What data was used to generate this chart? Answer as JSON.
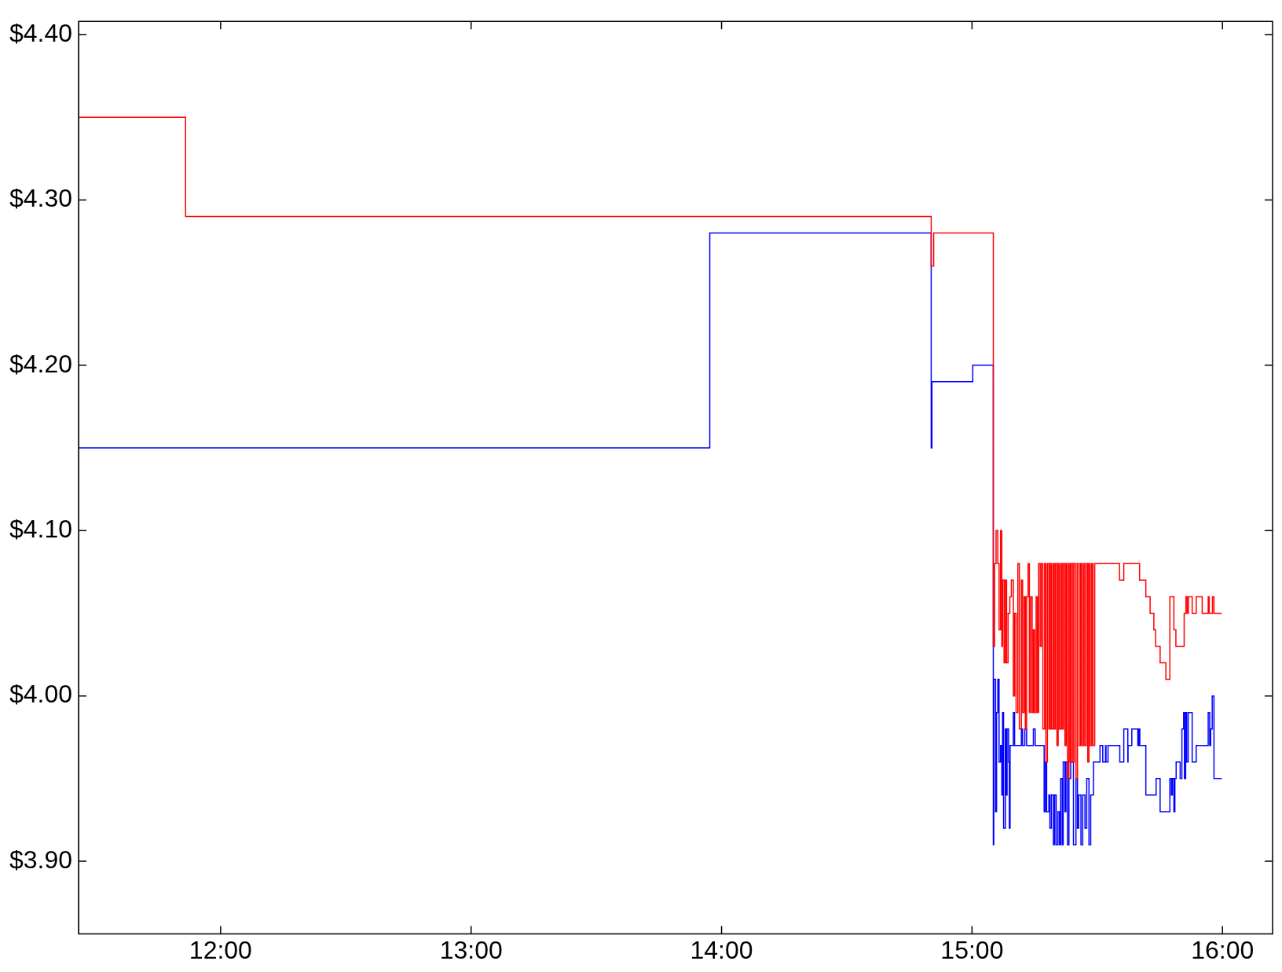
{
  "chart_data": {
    "type": "step",
    "xlim": [
      11.433,
      16.2
    ],
    "ylim": [
      3.856,
      4.408
    ],
    "xticks": [
      {
        "value": 12,
        "label": "12:00"
      },
      {
        "value": 13,
        "label": "13:00"
      },
      {
        "value": 14,
        "label": "14:00"
      },
      {
        "value": 15,
        "label": "15:00"
      },
      {
        "value": 16,
        "label": "16:00"
      }
    ],
    "yticks": [
      {
        "value": 3.9,
        "label": "$3.90"
      },
      {
        "value": 4.0,
        "label": "$4.00"
      },
      {
        "value": 4.1,
        "label": "$4.10"
      },
      {
        "value": 4.2,
        "label": "$4.20"
      },
      {
        "value": 4.3,
        "label": "$4.30"
      },
      {
        "value": 4.4,
        "label": "$4.40"
      }
    ],
    "grid": false,
    "legend": false,
    "marker": "none",
    "line_style": "solid",
    "series": [
      {
        "color": "#ff0000",
        "x": [
          11.433,
          11.86,
          14.837,
          14.847,
          15.085,
          15.09,
          15.096,
          15.103,
          15.108,
          15.114,
          15.119,
          15.122,
          15.128,
          15.133,
          15.138,
          15.144,
          15.151,
          15.157,
          15.165,
          15.17,
          15.176,
          15.183,
          15.189,
          15.197,
          15.202,
          15.208,
          15.213,
          15.218,
          15.224,
          15.229,
          15.234,
          15.24,
          15.245,
          15.25,
          15.256,
          15.261,
          15.266,
          15.272,
          15.277,
          15.283,
          15.29,
          15.295,
          15.301,
          15.307,
          15.312,
          15.317,
          15.323,
          15.328,
          15.333,
          15.339,
          15.344,
          15.349,
          15.355,
          15.36,
          15.365,
          15.371,
          15.376,
          15.381,
          15.387,
          15.392,
          15.397,
          15.403,
          15.408,
          15.415,
          15.421,
          15.428,
          15.434,
          15.439,
          15.445,
          15.45,
          15.456,
          15.462,
          15.467,
          15.472,
          15.478,
          15.483,
          15.49,
          15.589,
          15.606,
          15.669,
          15.694,
          15.711,
          15.726,
          15.733,
          15.751,
          15.774,
          15.79,
          15.806,
          15.814,
          15.847,
          15.854,
          15.859,
          15.864,
          15.879,
          15.895,
          15.919,
          15.943,
          15.947,
          15.96,
          15.966,
          15.997
        ],
        "values": [
          4.35,
          4.29,
          4.26,
          4.28,
          4.03,
          4.08,
          4.1,
          4.08,
          4.04,
          4.1,
          4.03,
          4.07,
          4.02,
          4.07,
          4.02,
          4.05,
          4.06,
          4.07,
          4.0,
          4.05,
          3.99,
          4.08,
          3.98,
          4.07,
          3.99,
          4.06,
          3.98,
          4.06,
          4.08,
          3.99,
          4.06,
          3.99,
          4.04,
          3.99,
          4.06,
          3.99,
          4.08,
          4.03,
          4.08,
          3.98,
          4.08,
          3.96,
          4.08,
          3.98,
          4.08,
          3.98,
          4.08,
          3.98,
          4.08,
          3.97,
          4.08,
          3.98,
          4.08,
          3.98,
          4.08,
          3.97,
          4.08,
          3.95,
          4.08,
          3.96,
          4.08,
          3.96,
          4.08,
          3.95,
          4.08,
          3.97,
          4.08,
          3.97,
          4.08,
          3.97,
          4.08,
          3.96,
          4.08,
          3.97,
          4.08,
          3.97,
          4.08,
          4.07,
          4.08,
          4.07,
          4.06,
          4.05,
          4.04,
          4.03,
          4.02,
          4.01,
          4.06,
          4.04,
          4.03,
          4.05,
          4.06,
          4.05,
          4.06,
          4.05,
          4.06,
          4.05,
          4.06,
          4.05,
          4.06,
          4.05,
          4.05
        ]
      },
      {
        "color": "#0000ff",
        "x": [
          11.433,
          13.953,
          14.837,
          14.84,
          15.003,
          15.085,
          15.087,
          15.094,
          15.098,
          15.103,
          15.108,
          15.114,
          15.119,
          15.122,
          15.126,
          15.133,
          15.136,
          15.14,
          15.146,
          15.149,
          15.152,
          15.165,
          15.17,
          15.197,
          15.202,
          15.211,
          15.218,
          15.245,
          15.252,
          15.288,
          15.293,
          15.298,
          15.307,
          15.311,
          15.317,
          15.325,
          15.33,
          15.336,
          15.343,
          15.349,
          15.354,
          15.36,
          15.364,
          15.371,
          15.375,
          15.381,
          15.387,
          15.394,
          15.405,
          15.415,
          15.421,
          15.426,
          15.435,
          15.442,
          15.451,
          15.458,
          15.467,
          15.474,
          15.485,
          15.511,
          15.522,
          15.533,
          15.535,
          15.543,
          15.59,
          15.606,
          15.622,
          15.623,
          15.638,
          15.662,
          15.666,
          15.67,
          15.694,
          15.735,
          15.751,
          15.79,
          15.796,
          15.8,
          15.806,
          15.81,
          15.815,
          15.831,
          15.838,
          15.845,
          15.848,
          15.853,
          15.857,
          15.863,
          15.879,
          15.895,
          15.943,
          15.949,
          15.953,
          15.959,
          15.966,
          15.997
        ],
        "values": [
          4.15,
          4.28,
          4.15,
          4.19,
          4.2,
          3.91,
          4.01,
          3.93,
          3.99,
          4.01,
          3.96,
          3.97,
          3.94,
          3.99,
          3.92,
          3.98,
          3.94,
          3.98,
          3.96,
          3.92,
          3.97,
          3.99,
          3.97,
          3.98,
          3.97,
          3.98,
          3.97,
          3.98,
          3.97,
          3.93,
          3.96,
          3.93,
          3.94,
          3.92,
          3.94,
          3.91,
          3.94,
          3.91,
          3.93,
          3.91,
          3.95,
          3.91,
          3.96,
          3.93,
          3.96,
          3.91,
          3.95,
          3.96,
          3.91,
          3.95,
          3.92,
          3.94,
          3.91,
          3.94,
          3.92,
          3.95,
          3.91,
          3.94,
          3.96,
          3.97,
          3.96,
          3.97,
          3.96,
          3.97,
          3.96,
          3.98,
          3.96,
          3.97,
          3.98,
          3.97,
          3.98,
          3.97,
          3.94,
          3.95,
          3.93,
          3.95,
          3.94,
          3.95,
          3.93,
          3.95,
          3.96,
          3.95,
          3.98,
          3.99,
          3.95,
          3.99,
          3.96,
          3.99,
          3.96,
          3.97,
          3.99,
          3.97,
          3.98,
          4.0,
          3.95,
          3.95
        ]
      }
    ]
  }
}
